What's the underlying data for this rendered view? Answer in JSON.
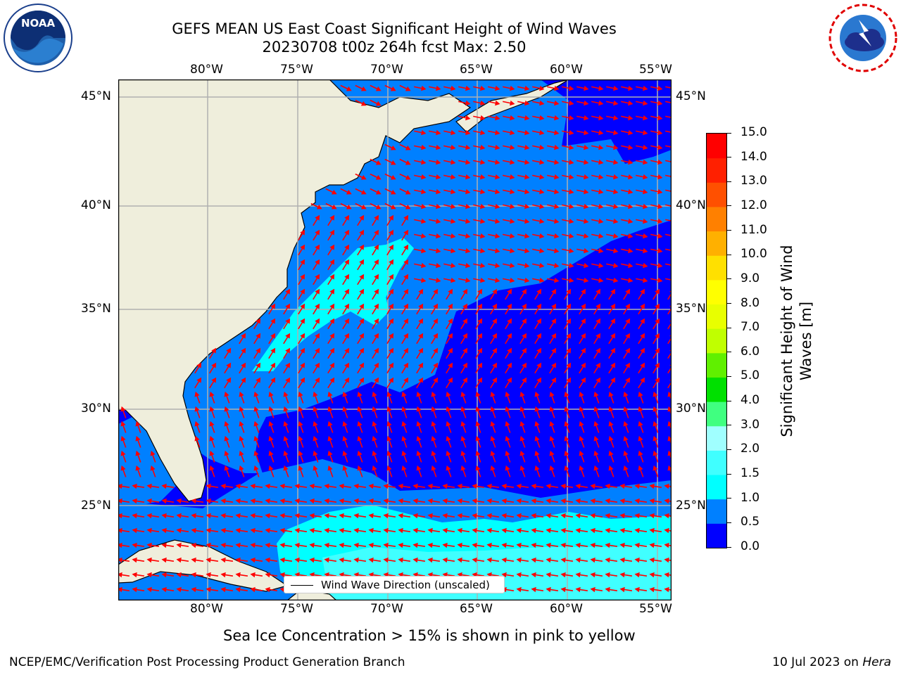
{
  "title": {
    "line1": "GEFS MEAN US East Coast Significant Height of Wind Waves",
    "line2": "20230708 t00z 264h fcst    Max: 2.50"
  },
  "logos": {
    "noaa_text": "NOAA",
    "noaa_ring": "NATIONAL OCEANIC AND ATMOSPHERIC ADMINISTRATION · U.S. DEPARTMENT OF COMMERCE",
    "nws_ring": "NATIONAL WEATHER SERVICE"
  },
  "map": {
    "lon_labels": [
      "80°W",
      "75°W",
      "70°W",
      "65°W",
      "60°W",
      "55°W"
    ],
    "lat_labels": [
      "45°N",
      "40°N",
      "35°N",
      "30°N",
      "25°N"
    ],
    "legend_text": "Wind Wave Direction (unscaled)",
    "colors": {
      "land": "#efeedc",
      "coast": "#000000",
      "grid": "#b0b0b0",
      "arrow": "#ff0000"
    }
  },
  "colorbar": {
    "label_line1": "Significant Height of Wind",
    "label_line2": "Waves [m]",
    "ticks": [
      "0.0",
      "0.5",
      "1.0",
      "1.5",
      "2.0",
      "3.0",
      "4.0",
      "5.0",
      "6.0",
      "7.0",
      "8.0",
      "9.0",
      "10.0",
      "11.0",
      "12.0",
      "13.0",
      "14.0",
      "15.0"
    ],
    "bin_colors": [
      "#0000ff",
      "#0080ff",
      "#00ffff",
      "#40ffff",
      "#a0ffff",
      "#40ff80",
      "#00e000",
      "#60f000",
      "#c0ff00",
      "#e8ff00",
      "#ffff00",
      "#ffe000",
      "#ffb000",
      "#ff8000",
      "#ff5000",
      "#ff2000",
      "#ff0000"
    ]
  },
  "subtitle": "Sea Ice Concentration > 15% is shown in pink to yellow",
  "footer": {
    "left": "NCEP/EMC/Verification Post Processing Product Generation Branch",
    "right_prefix": "10 Jul 2023 on ",
    "right_host": "Hera"
  }
}
